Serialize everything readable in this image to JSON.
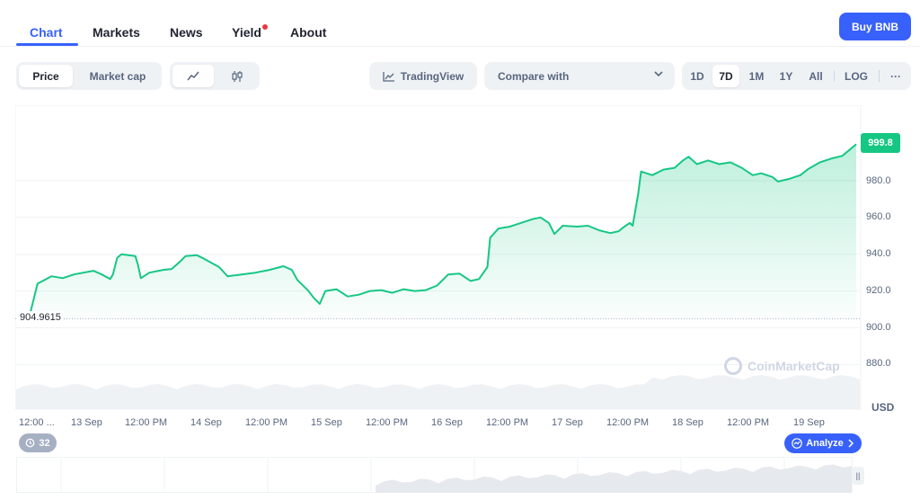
{
  "nav": {
    "tabs": [
      {
        "label": "Chart",
        "active": true
      },
      {
        "label": "Markets",
        "active": false
      },
      {
        "label": "News",
        "active": false
      },
      {
        "label": "Yield",
        "active": false
      },
      {
        "label": "About",
        "active": false
      }
    ],
    "buy_label": "Buy BNB"
  },
  "toolbar": {
    "price_label": "Price",
    "market_cap_label": "Market cap",
    "line_icon": "line-chart-icon",
    "candle_icon": "candlestick-icon",
    "tradingview_label": "TradingView",
    "compare_placeholder": "Compare with",
    "ranges": [
      "1D",
      "7D",
      "1M",
      "1Y",
      "All"
    ],
    "selected_range": "7D",
    "log_label": "LOG",
    "more_label": "···"
  },
  "chart": {
    "current_price": "999.8",
    "baseline_label": "904.9615",
    "currency": "USD",
    "watermark": "CoinMarketCap",
    "history_count": "32",
    "analyze_label": "Analyze",
    "colors": {
      "line": "#16c784",
      "accent": "#3861fb"
    }
  },
  "chart_data": {
    "type": "area",
    "title": "",
    "xlabel": "",
    "ylabel": "",
    "y_tick_labels": [
      "999.8",
      "980.0",
      "960.0",
      "940.0",
      "920.0",
      "900.0",
      "880.0"
    ],
    "y_ticks": [
      980,
      960,
      940,
      920,
      900,
      880
    ],
    "ylim": [
      870,
      1000
    ],
    "x_tick_labels": [
      "12:00 ...",
      "13 Sep",
      "12:00 PM",
      "14 Sep",
      "12:00 PM",
      "15 Sep",
      "12:00 PM",
      "16 Sep",
      "12:00 PM",
      "17 Sep",
      "12:00 PM",
      "18 Sep",
      "12:00 PM",
      "19 Sep"
    ],
    "baseline": 904.9615,
    "grid": true,
    "series": [
      {
        "values": [
          [
            0,
            906.5
          ],
          [
            0.04,
            905.5
          ],
          [
            0.07,
            924
          ],
          [
            0.12,
            928
          ],
          [
            0.16,
            927
          ],
          [
            0.2,
            929
          ],
          [
            0.27,
            931
          ],
          [
            0.3,
            929
          ],
          [
            0.33,
            926.5
          ],
          [
            0.34,
            929
          ],
          [
            0.355,
            938
          ],
          [
            0.37,
            940
          ],
          [
            0.42,
            939
          ],
          [
            0.43,
            934
          ],
          [
            0.44,
            927
          ],
          [
            0.47,
            930
          ],
          [
            0.52,
            931.5
          ],
          [
            0.55,
            932
          ],
          [
            0.58,
            936
          ],
          [
            0.6,
            939
          ],
          [
            0.64,
            939.5
          ],
          [
            0.66,
            938
          ],
          [
            0.72,
            933
          ],
          [
            0.75,
            928
          ],
          [
            0.8,
            929
          ],
          [
            0.85,
            930
          ],
          [
            0.9,
            931.5
          ],
          [
            0.95,
            933.5
          ],
          [
            0.98,
            931.5
          ],
          [
            1.0,
            926
          ],
          [
            1.04,
            920
          ],
          [
            1.06,
            916
          ],
          [
            1.08,
            913
          ],
          [
            1.1,
            920
          ],
          [
            1.14,
            921
          ],
          [
            1.18,
            917
          ],
          [
            1.22,
            918
          ],
          [
            1.26,
            920
          ],
          [
            1.3,
            920.5
          ],
          [
            1.34,
            919
          ],
          [
            1.38,
            921
          ],
          [
            1.42,
            920
          ],
          [
            1.46,
            920.5
          ],
          [
            1.5,
            923
          ],
          [
            1.54,
            929
          ],
          [
            1.58,
            929.5
          ],
          [
            1.62,
            925.5
          ],
          [
            1.65,
            926.5
          ],
          [
            1.68,
            933
          ],
          [
            1.69,
            949
          ],
          [
            1.72,
            954
          ],
          [
            1.76,
            955
          ],
          [
            1.8,
            957
          ],
          [
            1.84,
            959
          ],
          [
            1.87,
            960
          ],
          [
            1.9,
            957
          ],
          [
            1.92,
            951
          ],
          [
            1.95,
            955.5
          ],
          [
            2.0,
            955
          ],
          [
            2.04,
            955.5
          ],
          [
            2.08,
            953
          ],
          [
            2.12,
            951.5
          ],
          [
            2.15,
            952.5
          ],
          [
            2.17,
            955
          ],
          [
            2.19,
            957
          ],
          [
            2.2,
            955.5
          ],
          [
            2.22,
            973
          ],
          [
            2.23,
            985
          ],
          [
            2.27,
            983
          ],
          [
            2.31,
            986
          ],
          [
            2.35,
            987
          ],
          [
            2.38,
            991
          ],
          [
            2.4,
            993
          ],
          [
            2.43,
            989
          ],
          [
            2.47,
            991
          ],
          [
            2.51,
            989
          ],
          [
            2.55,
            990
          ],
          [
            2.59,
            987
          ],
          [
            2.63,
            983
          ],
          [
            2.66,
            984
          ],
          [
            2.7,
            982
          ],
          [
            2.72,
            979.5
          ],
          [
            2.76,
            981
          ],
          [
            2.8,
            983
          ],
          [
            2.83,
            986.5
          ],
          [
            2.87,
            990
          ],
          [
            2.91,
            992
          ],
          [
            2.95,
            993.5
          ],
          [
            2.97,
            996
          ],
          [
            3.0,
            999.8
          ]
        ]
      }
    ],
    "volume_hint": "low"
  }
}
